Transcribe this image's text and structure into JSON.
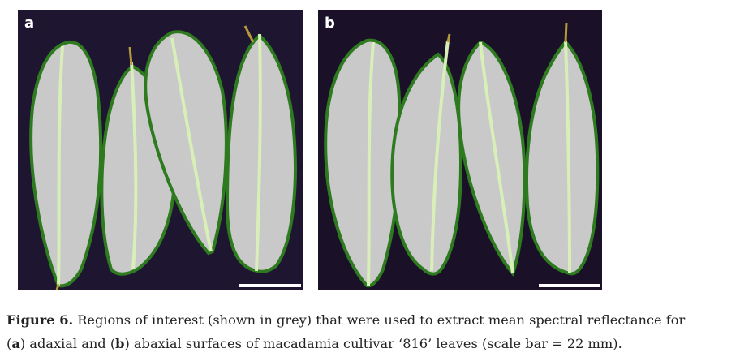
{
  "figure": {
    "panel_a": {
      "label": "a"
    },
    "panel_b": {
      "label": "b"
    },
    "colors": {
      "background_a": "#1e1530",
      "background_b": "#1a1128",
      "leaf_fill": "#c9c9c9",
      "leaf_edge": "#2d7a1f",
      "midrib": "#d9efb8",
      "stem": "#b59a3a",
      "scale_bar": "#ffffff"
    },
    "caption": {
      "fig_label": "Figure 6.",
      "text1": " Regions of interest (shown in grey) that were used to extract mean spectral reflectance for",
      "open1": "(",
      "a": "a",
      "text2": ") adaxial and (",
      "b": "b",
      "text3": ") abaxial surfaces of macadamia cultivar ‘816’ leaves (scale bar = 22 mm)."
    }
  }
}
